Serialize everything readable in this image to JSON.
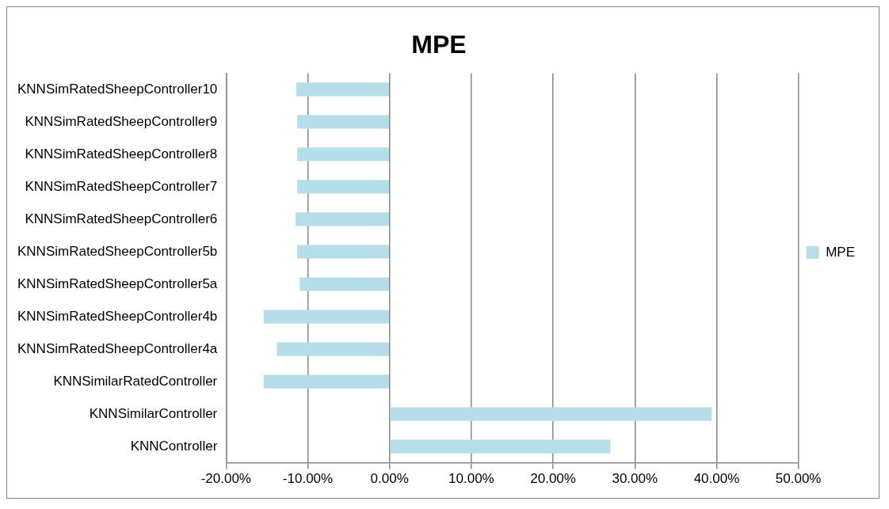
{
  "chart_data": {
    "type": "bar",
    "title": "MPE",
    "orientation": "horizontal",
    "categories": [
      "KNNSimRatedSheepController10",
      "KNNSimRatedSheepController9",
      "KNNSimRatedSheepController8",
      "KNNSimRatedSheepController7",
      "KNNSimRatedSheepController6",
      "KNNSimRatedSheepController5b",
      "KNNSimRatedSheepController5a",
      "KNNSimRatedSheepController4b",
      "KNNSimRatedSheepController4a",
      "KNNSimilarRatedController",
      "KNNSimilarController",
      "KNNController"
    ],
    "series": [
      {
        "name": "MPE",
        "color": "#b7dde8",
        "values": [
          -11.4,
          -11.3,
          -11.3,
          -11.3,
          -11.5,
          -11.3,
          -11.0,
          -15.4,
          -13.8,
          -15.4,
          39.4,
          27.0
        ]
      }
    ],
    "xlim": [
      -20,
      50
    ],
    "xticks": [
      {
        "value": -20,
        "label": "-20.00%"
      },
      {
        "value": -10,
        "label": "-10.00%"
      },
      {
        "value": 0,
        "label": "0.00%"
      },
      {
        "value": 10,
        "label": "10.00%"
      },
      {
        "value": 20,
        "label": "20.00%"
      },
      {
        "value": 30,
        "label": "30.00%"
      },
      {
        "value": 40,
        "label": "40.00%"
      },
      {
        "value": 50,
        "label": "50.00%"
      }
    ],
    "grid": "x",
    "legend": "right"
  }
}
